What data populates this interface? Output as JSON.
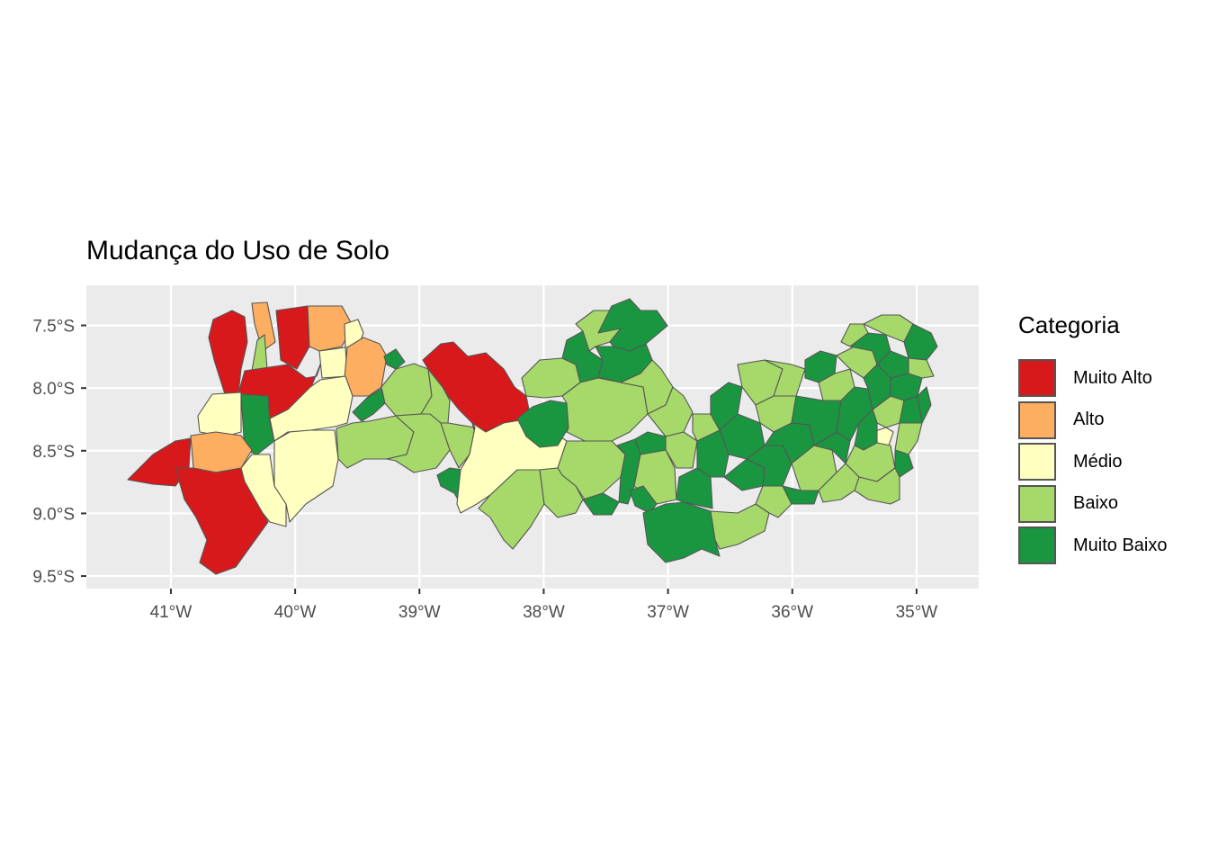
{
  "title": "Mudança do Uso de Solo",
  "legend": {
    "title": "Categoria",
    "items": [
      {
        "label": "Muito Alto",
        "color": "#d7191c"
      },
      {
        "label": "Alto",
        "color": "#fdae61"
      },
      {
        "label": "Médio",
        "color": "#ffffbf"
      },
      {
        "label": "Baixo",
        "color": "#a6d96a"
      },
      {
        "label": "Muito Baixo",
        "color": "#1a9641"
      }
    ]
  },
  "axes": {
    "x_ticks": [
      "41°W",
      "40°W",
      "39°W",
      "38°W",
      "37°W",
      "36°W",
      "35°W"
    ],
    "y_ticks": [
      "7.5°S",
      "8.0°S",
      "8.5°S",
      "9.0°S",
      "9.5°S"
    ],
    "x_values": [
      -41,
      -40,
      -39,
      -38,
      -37,
      -36,
      -35
    ],
    "y_values": [
      -7.5,
      -8.0,
      -8.5,
      -9.0,
      -9.5
    ],
    "xlim": [
      -41.68,
      -34.5
    ],
    "ylim": [
      -9.6,
      -7.18
    ]
  },
  "map": {
    "panel_background": "#ebebeb",
    "gridline_color": "#ffffff",
    "border_color": "#555555"
  }
}
